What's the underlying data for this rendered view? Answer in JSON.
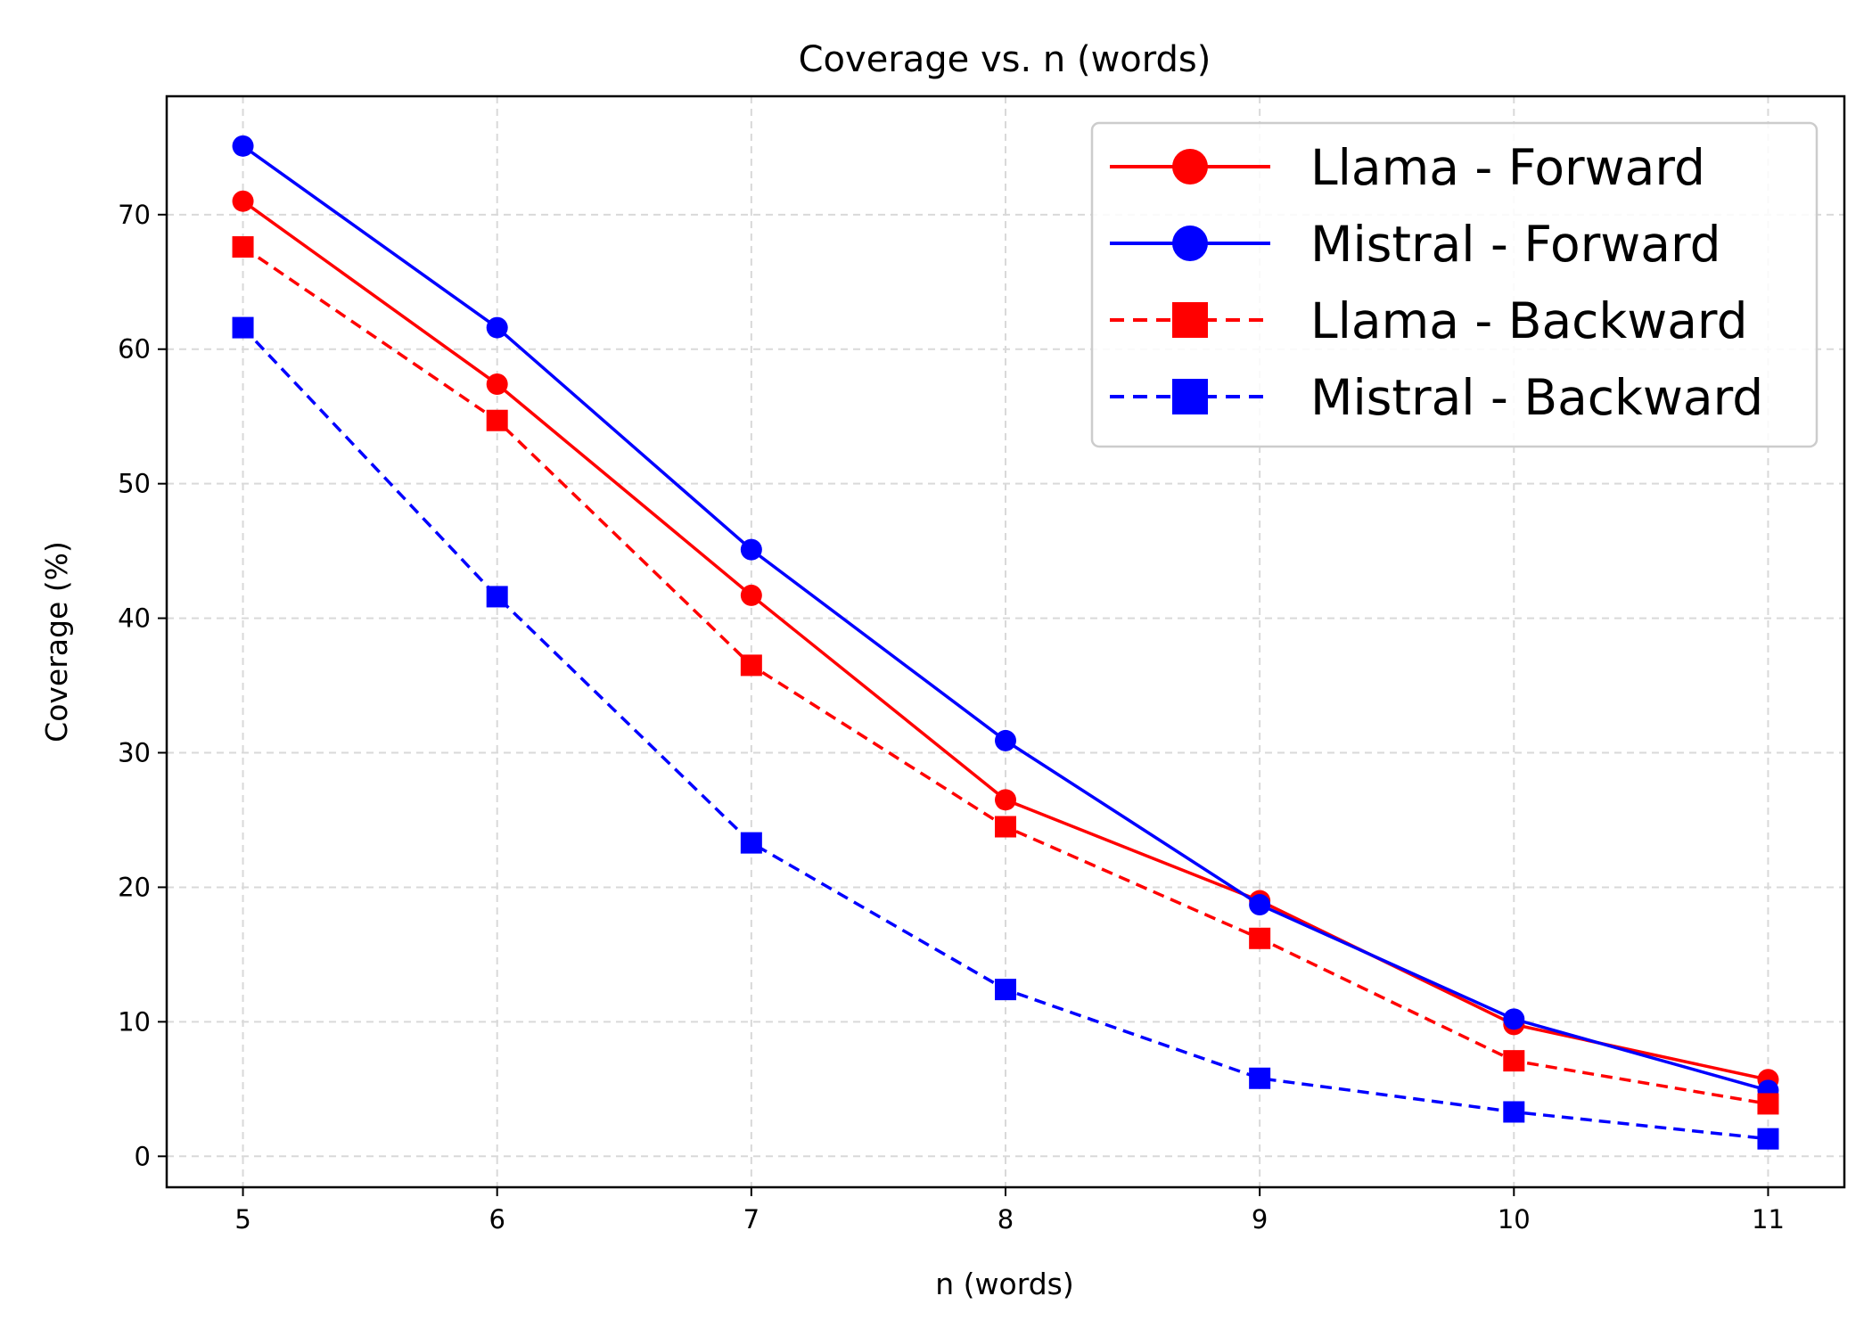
{
  "chart_data": {
    "type": "line",
    "title": "Coverage vs. n (words)",
    "xlabel": "n (words)",
    "ylabel": "Coverage (%)",
    "x": [
      5,
      6,
      7,
      8,
      9,
      10,
      11
    ],
    "xlim": [
      4.7,
      11.3
    ],
    "ylim": [
      -2.3,
      78.8
    ],
    "xticks": [
      5,
      6,
      7,
      8,
      9,
      10,
      11
    ],
    "yticks": [
      0,
      10,
      20,
      30,
      40,
      50,
      60,
      70
    ],
    "grid": true,
    "legend_position": "top-right",
    "series": [
      {
        "name": "Llama - Forward",
        "color": "#ff0000",
        "linestyle": "solid",
        "marker": "circle",
        "values": [
          71.0,
          57.4,
          41.7,
          26.5,
          19.0,
          9.8,
          5.7
        ]
      },
      {
        "name": "Mistral - Forward",
        "color": "#0000ff",
        "linestyle": "solid",
        "marker": "circle",
        "values": [
          75.1,
          61.6,
          45.1,
          30.9,
          18.7,
          10.2,
          4.9
        ]
      },
      {
        "name": "Llama - Backward",
        "color": "#ff0000",
        "linestyle": "dashed",
        "marker": "square",
        "values": [
          67.6,
          54.7,
          36.5,
          24.5,
          16.2,
          7.1,
          3.9
        ]
      },
      {
        "name": "Mistral - Backward",
        "color": "#0000ff",
        "linestyle": "dashed",
        "marker": "square",
        "values": [
          61.6,
          41.6,
          23.3,
          12.4,
          5.8,
          3.3,
          1.3
        ]
      }
    ]
  }
}
